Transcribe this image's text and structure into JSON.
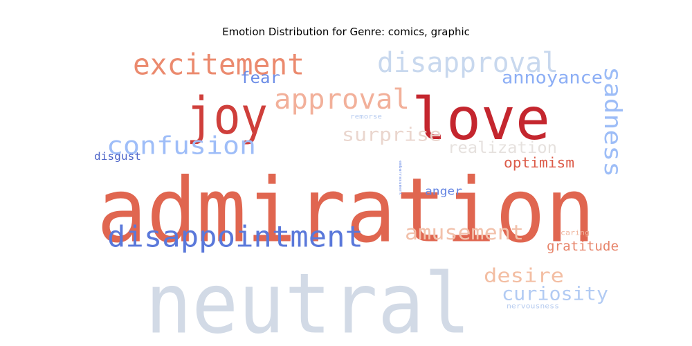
{
  "chart_data": {
    "type": "wordcloud",
    "title": "Emotion Distribution for Genre: comics, graphic",
    "words": [
      {
        "text": "admiration",
        "color": "#e06650"
      },
      {
        "text": "neutral",
        "color": "#d2dae6"
      },
      {
        "text": "love",
        "color": "#c4262e"
      },
      {
        "text": "joy",
        "color": "#cf3f3b"
      },
      {
        "text": "disappointment",
        "color": "#5a78da"
      },
      {
        "text": "excitement",
        "color": "#eb8a6e"
      },
      {
        "text": "disapproval",
        "color": "#c8d8ee"
      },
      {
        "text": "approval",
        "color": "#f2b09a"
      },
      {
        "text": "confusion",
        "color": "#9ebdf8"
      },
      {
        "text": "sadness",
        "color": "#9dbdf7"
      },
      {
        "text": "surprise",
        "color": "#ead6ce"
      },
      {
        "text": "amusement",
        "color": "#f2c1ab"
      },
      {
        "text": "annoyance",
        "color": "#8caef5"
      },
      {
        "text": "desire",
        "color": "#f3bea3"
      },
      {
        "text": "curiosity",
        "color": "#b2cbf3"
      },
      {
        "text": "realization",
        "color": "#e6e1de"
      },
      {
        "text": "fear",
        "color": "#6b8ce6"
      },
      {
        "text": "optimism",
        "color": "#dc5b49"
      },
      {
        "text": "gratitude",
        "color": "#e7846a"
      },
      {
        "text": "anger",
        "color": "#6283e2"
      },
      {
        "text": "disgust",
        "color": "#4f66c9"
      },
      {
        "text": "remorse",
        "color": "#b9cdf0"
      },
      {
        "text": "caring",
        "color": "#efb49c"
      },
      {
        "text": "nervousness",
        "color": "#b6cbef"
      },
      {
        "text": "embarrassment",
        "color": "#6b8ce6"
      }
    ]
  }
}
